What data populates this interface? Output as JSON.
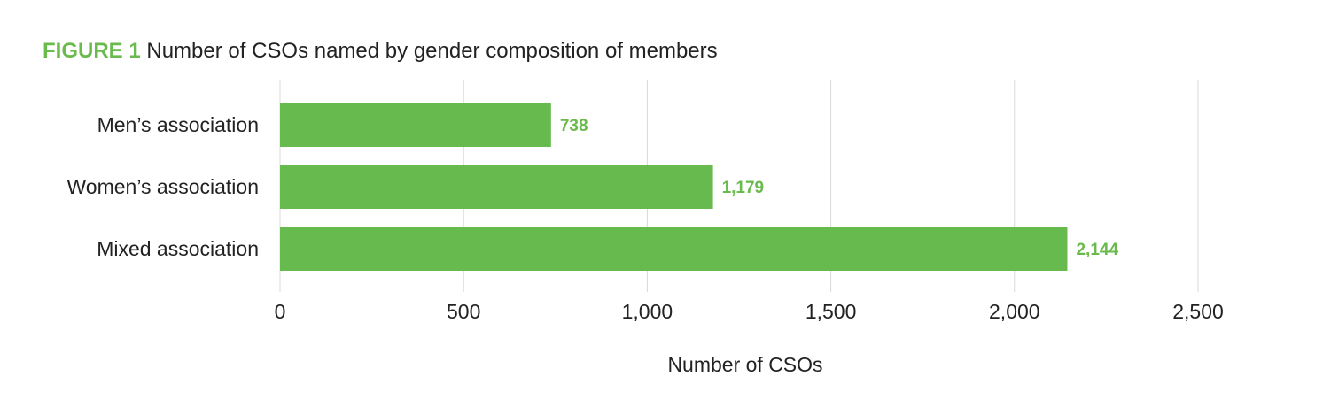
{
  "figure": {
    "label": "FIGURE 1",
    "title": "Number of CSOs named by gender composition of members"
  },
  "chart_data": {
    "type": "bar",
    "orientation": "horizontal",
    "categories": [
      "Men’s association",
      "Women’s association",
      "Mixed association"
    ],
    "values": [
      738,
      1179,
      2144
    ],
    "value_labels": [
      "738",
      "1,179",
      "2,144"
    ],
    "xlabel": "Number of CSOs",
    "ylabel": "",
    "xlim": [
      0,
      2500
    ],
    "x_ticks": [
      0,
      500,
      1000,
      1500,
      2000,
      2500
    ],
    "x_tick_labels": [
      "0",
      "500",
      "1,000",
      "1,500",
      "2,000",
      "2,500"
    ],
    "grid": "vertical",
    "legend": "none",
    "bar_color": "#67bb4e",
    "label_color": "#6aba4d"
  }
}
